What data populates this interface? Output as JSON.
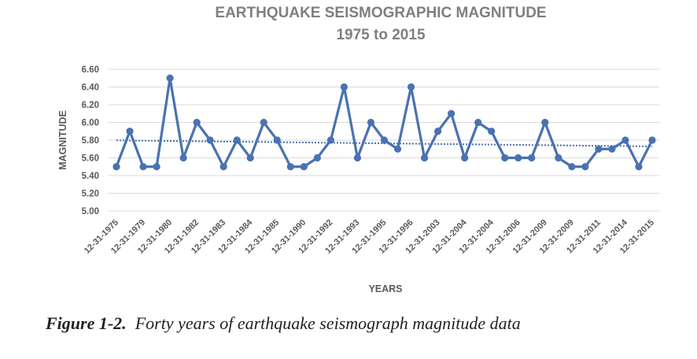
{
  "chart_data": {
    "type": "line",
    "title": "EARTHQUAKE  SEISMOGRAPHIC MAGNITUDE",
    "subtitle": "1975 to 2015",
    "y_label": "MAGNITUDE",
    "x_label": "YEARS",
    "categories": [
      "12-31-1975",
      null,
      "12-31-1979",
      null,
      "12-31-1980",
      null,
      "12-31-1982",
      null,
      "12-31-1983",
      null,
      "12-31-1984",
      null,
      "12-31-1985",
      null,
      "12-31-1990",
      null,
      "12-31-1992",
      null,
      "12-31-1993",
      null,
      "12-31-1995",
      null,
      "12-31-1996",
      null,
      "12-31-2003",
      null,
      "12-31-2004",
      null,
      "12-31-2004",
      null,
      "12-31-2006",
      null,
      "12-31-2009",
      null,
      "12-31-2009",
      null,
      "12-31-2011",
      null,
      "12-31-2014",
      null,
      "12-31-2015"
    ],
    "series": [
      {
        "name": "Magnitude",
        "color": "#4a72b0",
        "values": [
          5.5,
          5.9,
          5.5,
          5.5,
          6.5,
          5.6,
          6.0,
          5.8,
          5.5,
          5.8,
          5.6,
          6.0,
          5.8,
          5.5,
          5.5,
          5.6,
          5.8,
          6.4,
          5.6,
          6.0,
          5.8,
          5.7,
          6.4,
          5.6,
          5.9,
          6.1,
          5.6,
          6.0,
          5.9,
          5.6,
          5.6,
          5.6,
          6.0,
          5.6,
          5.5,
          5.5,
          5.7,
          5.7,
          5.8,
          5.5,
          5.8
        ]
      }
    ],
    "ylim": [
      5.0,
      6.6
    ],
    "yticks": [
      {
        "value": 5.0,
        "label": "5.00"
      },
      {
        "value": 5.2,
        "label": "5.20"
      },
      {
        "value": 5.4,
        "label": "5.40"
      },
      {
        "value": 5.6,
        "label": "5.60"
      },
      {
        "value": 5.8,
        "label": "5.80"
      },
      {
        "value": 6.0,
        "label": "6.00"
      },
      {
        "value": 6.2,
        "label": "6.20"
      },
      {
        "value": 6.4,
        "label": "6.40"
      },
      {
        "value": 6.6,
        "label": "6.60"
      }
    ],
    "grid": true,
    "trendline": true
  },
  "caption": {
    "label": "Figure 1-2.",
    "text": "Forty years of earthquake seismograph magnitude data"
  }
}
